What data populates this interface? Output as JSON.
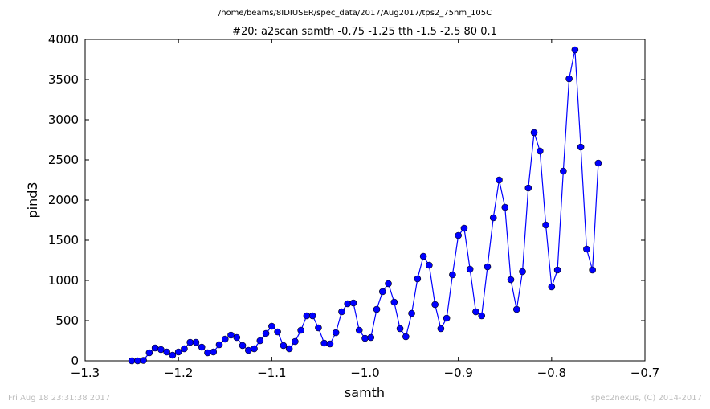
{
  "chart_data": {
    "type": "line",
    "path_title": "/home/beams/8IDIUSER/spec_data/2017/Aug2017/tps2_75nm_105C",
    "title": "#20: a2scan  samth -0.75 -1.25  tth -1.5 -2.5  80 0.1",
    "xlabel": "samth",
    "ylabel": "pind3",
    "xlim": [
      -1.3,
      -0.7
    ],
    "ylim": [
      0,
      4000
    ],
    "xticks": [
      "−1.3",
      "−1.2",
      "−1.1",
      "−1.0",
      "−0.9",
      "−0.8",
      "−0.7"
    ],
    "xtick_values": [
      -1.3,
      -1.2,
      -1.1,
      -1.0,
      -0.9,
      -0.8,
      -0.7
    ],
    "yticks": [
      "0",
      "500",
      "1000",
      "1500",
      "2000",
      "2500",
      "3000",
      "3500",
      "4000"
    ],
    "ytick_values": [
      0,
      500,
      1000,
      1500,
      2000,
      2500,
      3000,
      3500,
      4000
    ],
    "grid": false,
    "line_color": "#0000ff",
    "marker_color": "#0000ff",
    "series": [
      {
        "x": [
          -1.25,
          -1.24375,
          -1.2375,
          -1.23125,
          -1.225,
          -1.21875,
          -1.2125,
          -1.20625,
          -1.2,
          -1.19375,
          -1.1875,
          -1.18125,
          -1.175,
          -1.16875,
          -1.1625,
          -1.15625,
          -1.15,
          -1.14375,
          -1.1375,
          -1.13125,
          -1.125,
          -1.11875,
          -1.1125,
          -1.10625,
          -1.1,
          -1.09375,
          -1.0875,
          -1.08125,
          -1.075,
          -1.06875,
          -1.0625,
          -1.05625,
          -1.05,
          -1.04375,
          -1.0375,
          -1.03125,
          -1.025,
          -1.01875,
          -1.0125,
          -1.00625,
          -1.0,
          -0.99375,
          -0.9875,
          -0.98125,
          -0.975,
          -0.96875,
          -0.9625,
          -0.95625,
          -0.95,
          -0.94375,
          -0.9375,
          -0.93125,
          -0.925,
          -0.91875,
          -0.9125,
          -0.90625,
          -0.9,
          -0.89375,
          -0.8875,
          -0.88125,
          -0.875,
          -0.86875,
          -0.8625,
          -0.85625,
          -0.85,
          -0.84375,
          -0.8375,
          -0.83125,
          -0.825,
          -0.81875,
          -0.8125,
          -0.80625,
          -0.8,
          -0.79375,
          -0.7875,
          -0.78125,
          -0.775,
          -0.76875,
          -0.7625,
          -0.75625,
          -0.75
        ],
        "values": [
          0,
          0,
          5,
          100,
          160,
          140,
          110,
          70,
          110,
          150,
          230,
          230,
          170,
          100,
          110,
          200,
          270,
          320,
          290,
          190,
          130,
          150,
          250,
          340,
          430,
          360,
          190,
          150,
          240,
          380,
          560,
          560,
          410,
          220,
          210,
          350,
          610,
          710,
          720,
          380,
          280,
          290,
          640,
          860,
          960,
          730,
          400,
          300,
          590,
          1020,
          1300,
          1190,
          700,
          400,
          530,
          1070,
          1560,
          1650,
          1140,
          610,
          560,
          1170,
          1780,
          2250,
          1910,
          1010,
          640,
          1110,
          2150,
          2840,
          2610,
          1690,
          920,
          1130,
          2360,
          3510,
          3870,
          2660,
          1390,
          1130,
          2460
        ]
      }
    ]
  },
  "footer": {
    "left": "Fri Aug 18 23:31:38 2017",
    "right": "spec2nexus, (C) 2014-2017"
  }
}
